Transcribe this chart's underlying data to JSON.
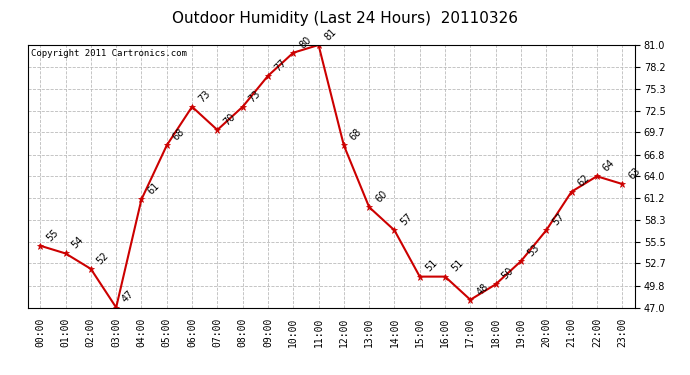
{
  "title": "Outdoor Humidity (Last 24 Hours)  20110326",
  "copyright": "Copyright 2011 Cartronics.com",
  "x_labels": [
    "00:00",
    "01:00",
    "02:00",
    "03:00",
    "04:00",
    "05:00",
    "06:00",
    "07:00",
    "08:00",
    "09:00",
    "10:00",
    "11:00",
    "12:00",
    "13:00",
    "14:00",
    "15:00",
    "16:00",
    "17:00",
    "18:00",
    "19:00",
    "20:00",
    "21:00",
    "22:00",
    "23:00"
  ],
  "y_values": [
    55,
    54,
    52,
    47,
    61,
    68,
    73,
    70,
    73,
    77,
    80,
    81,
    68,
    60,
    57,
    51,
    51,
    48,
    50,
    53,
    57,
    62,
    64,
    63
  ],
  "y_ticks": [
    47.0,
    49.8,
    52.7,
    55.5,
    58.3,
    61.2,
    64.0,
    66.8,
    69.7,
    72.5,
    75.3,
    78.2,
    81.0
  ],
  "ylim": [
    47.0,
    81.0
  ],
  "line_color": "#cc0000",
  "marker_color": "#cc0000",
  "bg_color": "#ffffff",
  "grid_color": "#bbbbbb",
  "title_fontsize": 11,
  "label_fontsize": 7,
  "annotation_fontsize": 7,
  "copyright_fontsize": 6.5
}
